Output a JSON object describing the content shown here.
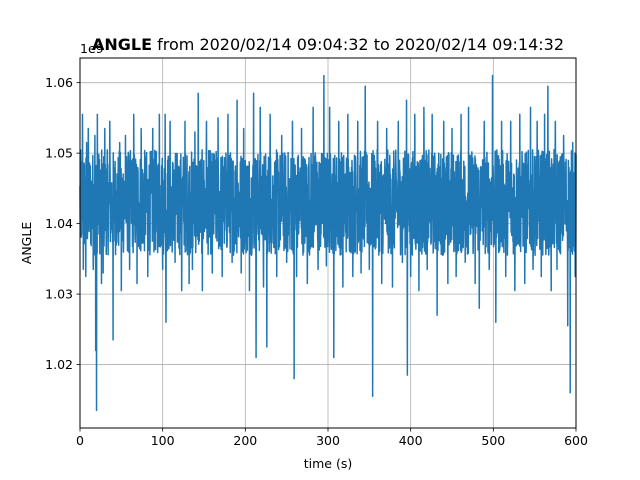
{
  "chart_data": {
    "type": "line",
    "title_bold": "ANGLE",
    "title_rest": " from 2020/02/14 09:04:32 to 2020/02/14 09:14:32",
    "xlabel": "time (s)",
    "ylabel": "ANGLE",
    "y_offset_text": "1e9",
    "xlim": [
      0,
      600
    ],
    "ylim": [
      1.011,
      1.0635
    ],
    "x_ticks": [
      0,
      100,
      200,
      300,
      400,
      500,
      600
    ],
    "x_tick_labels": [
      "0",
      "100",
      "200",
      "300",
      "400",
      "500",
      "600"
    ],
    "y_ticks": [
      1.02,
      1.03,
      1.04,
      1.05,
      1.06
    ],
    "y_tick_labels": [
      "1.02",
      "1.03",
      "1.04",
      "1.05",
      "1.06"
    ],
    "grid": true,
    "series": [
      {
        "color": "#1f77b4",
        "band_low": 1.0355,
        "band_high": 1.0505,
        "spikes": [
          [
            3,
            1.0555
          ],
          [
            4,
            1.0335
          ],
          [
            7,
            1.0325
          ],
          [
            8,
            1.0515
          ],
          [
            10,
            1.0535
          ],
          [
            16,
            1.0335
          ],
          [
            18,
            1.0525
          ],
          [
            19,
            1.022
          ],
          [
            20,
            1.0135
          ],
          [
            21,
            1.0555
          ],
          [
            26,
            1.0315
          ],
          [
            28,
            1.033
          ],
          [
            30,
            1.0535
          ],
          [
            36,
            1.0545
          ],
          [
            40,
            1.0235
          ],
          [
            48,
            1.0515
          ],
          [
            50,
            1.0305
          ],
          [
            55,
            1.0525
          ],
          [
            60,
            1.0335
          ],
          [
            65,
            1.0555
          ],
          [
            69,
            1.0315
          ],
          [
            74,
            1.0535
          ],
          [
            82,
            1.0325
          ],
          [
            88,
            1.0535
          ],
          [
            96,
            1.0555
          ],
          [
            100,
            1.0335
          ],
          [
            103,
            1.0555
          ],
          [
            104,
            1.026
          ],
          [
            109,
            1.0545
          ],
          [
            115,
            1.0345
          ],
          [
            123,
            1.0305
          ],
          [
            127,
            1.0545
          ],
          [
            132,
            1.0315
          ],
          [
            136,
            1.0335
          ],
          [
            139,
            1.053
          ],
          [
            143,
            1.0585
          ],
          [
            148,
            1.0305
          ],
          [
            153,
            1.0545
          ],
          [
            160,
            1.033
          ],
          [
            167,
            1.055
          ],
          [
            172,
            1.0325
          ],
          [
            179,
            1.0555
          ],
          [
            184,
            1.0345
          ],
          [
            190,
            1.0575
          ],
          [
            195,
            1.033
          ],
          [
            198,
            1.0535
          ],
          [
            205,
            1.0305
          ],
          [
            210,
            1.0585
          ],
          [
            213,
            1.021
          ],
          [
            218,
            1.0565
          ],
          [
            222,
            1.031
          ],
          [
            226,
            1.0225
          ],
          [
            230,
            1.0555
          ],
          [
            238,
            1.0325
          ],
          [
            244,
            1.0525
          ],
          [
            250,
            1.0345
          ],
          [
            257,
            1.0545
          ],
          [
            259,
            1.018
          ],
          [
            262,
            1.0325
          ],
          [
            268,
            1.0535
          ],
          [
            275,
            1.0315
          ],
          [
            282,
            1.0565
          ],
          [
            288,
            1.0335
          ],
          [
            295,
            1.061
          ],
          [
            298,
            1.034
          ],
          [
            302,
            1.0565
          ],
          [
            307,
            1.021
          ],
          [
            313,
            1.0545
          ],
          [
            318,
            1.031
          ],
          [
            324,
            1.0555
          ],
          [
            330,
            1.0325
          ],
          [
            336,
            1.0545
          ],
          [
            340,
            1.033
          ],
          [
            345,
            1.0595
          ],
          [
            350,
            1.0335
          ],
          [
            354,
            1.0155
          ],
          [
            360,
            1.0545
          ],
          [
            365,
            1.0315
          ],
          [
            371,
            1.0535
          ],
          [
            378,
            1.031
          ],
          [
            385,
            1.0545
          ],
          [
            390,
            1.0345
          ],
          [
            395,
            1.0575
          ],
          [
            396,
            1.0185
          ],
          [
            400,
            1.0325
          ],
          [
            405,
            1.0555
          ],
          [
            410,
            1.0305
          ],
          [
            416,
            1.0565
          ],
          [
            420,
            1.0335
          ],
          [
            426,
            1.0555
          ],
          [
            432,
            1.027
          ],
          [
            440,
            1.0545
          ],
          [
            445,
            1.0315
          ],
          [
            450,
            1.0535
          ],
          [
            455,
            1.0325
          ],
          [
            461,
            1.0555
          ],
          [
            466,
            1.0345
          ],
          [
            470,
            1.0565
          ],
          [
            478,
            1.0315
          ],
          [
            483,
            1.028
          ],
          [
            489,
            1.0545
          ],
          [
            495,
            1.0335
          ],
          [
            499,
            1.061
          ],
          [
            503,
            1.026
          ],
          [
            510,
            1.0545
          ],
          [
            515,
            1.0325
          ],
          [
            521,
            1.0545
          ],
          [
            526,
            1.0305
          ],
          [
            532,
            1.0555
          ],
          [
            538,
            1.0315
          ],
          [
            545,
            1.0565
          ],
          [
            548,
            1.0335
          ],
          [
            553,
            1.0545
          ],
          [
            558,
            1.0325
          ],
          [
            562,
            1.0555
          ],
          [
            566,
            1.0595
          ],
          [
            570,
            1.0305
          ],
          [
            575,
            1.0545
          ],
          [
            577,
            1.0335
          ],
          [
            585,
            1.0525
          ],
          [
            590,
            1.0255
          ],
          [
            593,
            1.016
          ],
          [
            596,
            1.0515
          ],
          [
            599,
            1.0325
          ]
        ]
      }
    ]
  }
}
